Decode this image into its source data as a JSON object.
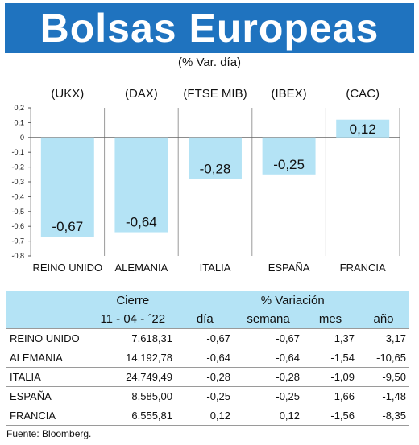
{
  "title": "Bolsas Europeas",
  "subtitle": "(% Var. día)",
  "chart_data": {
    "type": "bar",
    "indices": [
      "(UKX)",
      "(DAX)",
      "(FTSE MIB)",
      "(IBEX)",
      "(CAC)"
    ],
    "categories": [
      "REINO UNIDO",
      "ALEMANIA",
      "ITALIA",
      "ESPAÑA",
      "FRANCIA"
    ],
    "values": [
      -0.67,
      -0.64,
      -0.28,
      -0.25,
      0.12
    ],
    "data_labels": [
      "-0,67",
      "-0,64",
      "-0,28",
      "-0,25",
      "0,12"
    ],
    "yticks": [
      0.2,
      0.1,
      0,
      -0.1,
      -0.2,
      -0.3,
      -0.4,
      -0.5,
      -0.6,
      -0.7,
      -0.8
    ],
    "ytick_labels": [
      "0,2",
      "0,1",
      "0",
      "-0,1",
      "-0,2",
      "-0,3",
      "-0,4",
      "-0,5",
      "-0,6",
      "-0,7",
      "-0,8"
    ],
    "ylim": [
      -0.8,
      0.2
    ],
    "grid": true,
    "bar_color": "#b4e3f5"
  },
  "table": {
    "group_header_close": "Cierre",
    "group_header_change": "% Variación",
    "date": "11 - 04 - ´22",
    "columns": [
      "día",
      "semana",
      "mes",
      "año"
    ],
    "rows": [
      {
        "name": "REINO UNIDO",
        "close": "7.618,31",
        "day": "-0,67",
        "week": "-0,67",
        "month": "1,37",
        "year": "3,17"
      },
      {
        "name": "ALEMANIA",
        "close": "14.192,78",
        "day": "-0,64",
        "week": "-0,64",
        "month": "-1,54",
        "year": "-10,65"
      },
      {
        "name": "ITALIA",
        "close": "24.749,49",
        "day": "-0,28",
        "week": "-0,28",
        "month": "-1,09",
        "year": "-9,50"
      },
      {
        "name": "ESPAÑA",
        "close": "8.585,00",
        "day": "-0,25",
        "week": "-0,25",
        "month": "1,66",
        "year": "-1,48"
      },
      {
        "name": "FRANCIA",
        "close": "6.555,81",
        "day": "0,12",
        "week": "0,12",
        "month": "-1,56",
        "year": "-8,35"
      }
    ]
  },
  "source": "Fuente: Bloomberg.",
  "colors": {
    "banner": "#1f73bf",
    "accent_light": "#b4e3f5"
  }
}
